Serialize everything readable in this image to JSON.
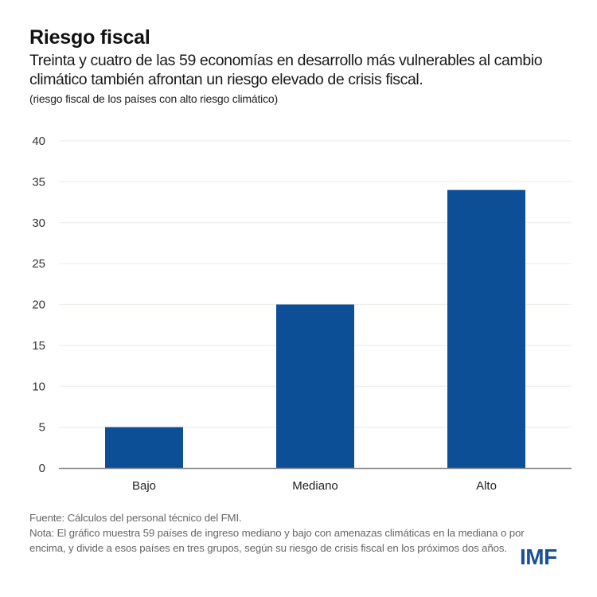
{
  "header": {
    "title": "Riesgo fiscal",
    "subtitle": "Treinta y cuatro de las 59 economías en desarrollo más vulnerables al cambio climático también afrontan un riesgo elevado de crisis fiscal.",
    "units": "(riesgo fiscal de los países con alto riesgo climático)"
  },
  "footer": {
    "source": "Fuente: Cálculos del personal técnico del FMI.",
    "note": "Nota: El gráfico muestra 59 países de ingreso mediano y bajo con amenazas climáticas en la mediana o por encima, y divide a esos países en tres grupos, según su riesgo de crisis fiscal en los próximos dos años.",
    "logo": "IMF"
  },
  "colors": {
    "bar": "#0d4f96",
    "grid": "#efeee9",
    "axis": "#8a8a8a",
    "logo": "#1b4f9c"
  },
  "chart_data": {
    "type": "bar",
    "title": "Riesgo fiscal",
    "xlabel": "",
    "ylabel": "",
    "categories": [
      "Bajo",
      "Mediano",
      "Alto"
    ],
    "values": [
      5,
      20,
      34
    ],
    "ylim": [
      0,
      40
    ],
    "yticks": [
      0,
      5,
      10,
      15,
      20,
      25,
      30,
      35,
      40
    ],
    "grid": true,
    "legend": "none"
  }
}
